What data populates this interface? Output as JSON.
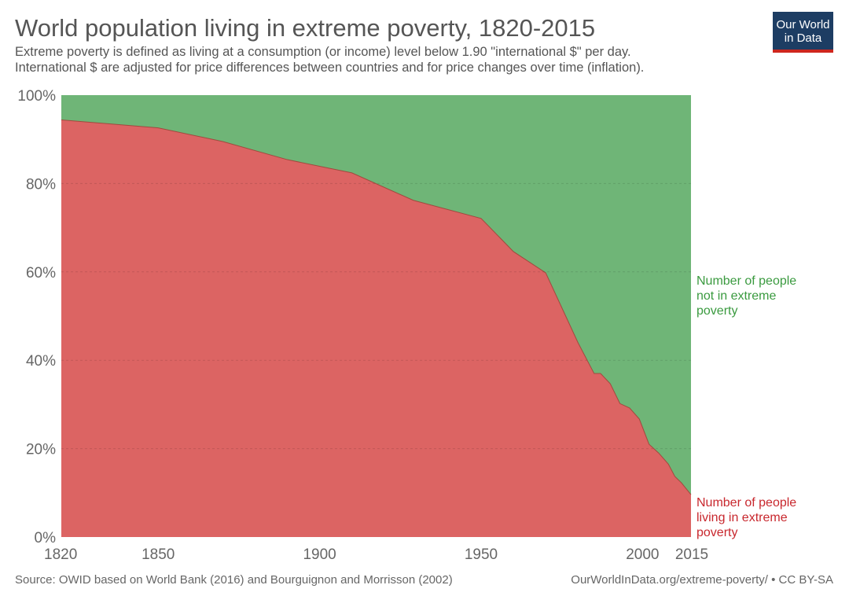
{
  "header": {
    "title": "World population living in extreme poverty, 1820-2015",
    "subtitle_line1": "Extreme poverty is defined as living at a consumption (or income) level below 1.90 \"international $\" per day.",
    "subtitle_line2": "International $ are adjusted for price differences between countries and for price changes over time (inflation).",
    "logo_line1": "Our World",
    "logo_line2": "in Data"
  },
  "footer": {
    "source": "Source: OWID based on World Bank (2016) and Bourguignon and Morrisson (2002)",
    "url": "OurWorldInData.org/extreme-poverty/ • CC BY-SA"
  },
  "chart_data": {
    "type": "area",
    "title": "World population living in extreme poverty, 1820-2015",
    "xlim": [
      1820,
      2015
    ],
    "ylim": [
      0,
      100
    ],
    "x_ticks": [
      1820,
      1850,
      1900,
      1950,
      2000,
      2015
    ],
    "y_ticks": [
      "0%",
      "20%",
      "40%",
      "60%",
      "80%",
      "100%"
    ],
    "grid": true,
    "colors": {
      "poverty": "#dc6463",
      "not_poverty": "#6fb577",
      "poverty_text": "#c8272d",
      "not_poverty_text": "#3a9a3f"
    },
    "series": [
      {
        "name": "Number of people living in extreme poverty",
        "label_lines": [
          "Number of people",
          "living in extreme",
          "poverty"
        ],
        "x": [
          1820,
          1850,
          1870,
          1890,
          1910,
          1929,
          1950,
          1960,
          1970,
          1980,
          1985,
          1987,
          1990,
          1993,
          1996,
          1999,
          2002,
          2005,
          2008,
          2010,
          2012,
          2015
        ],
        "values": [
          94.4,
          92.6,
          89.5,
          85.4,
          82.4,
          76.2,
          72.1,
          64.6,
          59.8,
          44.0,
          37.0,
          37.0,
          34.7,
          30.2,
          29.2,
          26.7,
          21.0,
          19.0,
          16.5,
          13.7,
          12.3,
          9.6
        ]
      },
      {
        "name": "Number of people not in extreme poverty",
        "label_lines": [
          "Number of people",
          "not in extreme",
          "poverty"
        ]
      }
    ]
  }
}
